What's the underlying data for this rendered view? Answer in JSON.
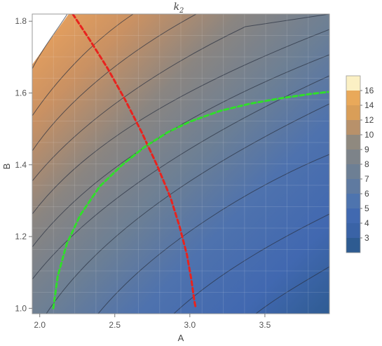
{
  "chart_data": {
    "type": "contour",
    "title": "k",
    "title_subscript": "2",
    "xlabel": "A",
    "ylabel": "B",
    "xlim": [
      1.95,
      3.93
    ],
    "ylim": [
      0.985,
      1.82
    ],
    "xticks": [
      2.0,
      2.5,
      3.0,
      3.5
    ],
    "xtick_labels": [
      "2.0",
      "2.5",
      "3.0",
      "3.5"
    ],
    "yticks": [
      1.0,
      1.2,
      1.4,
      1.6,
      1.8
    ],
    "ytick_labels": [
      "1.0",
      "1.2",
      "1.4",
      "1.6",
      "1.8"
    ],
    "grid": true,
    "legend": {
      "placement": "right",
      "levels": [
        "3",
        "4",
        "5",
        "6",
        "7",
        "8",
        "9",
        "10",
        "12",
        "14",
        "16"
      ],
      "colors": [
        "#2e5b91",
        "#3a63a6",
        "#4169b0",
        "#4e74ae",
        "#5f7aa0",
        "#6d7f94",
        "#7d8389",
        "#8f897f",
        "#b8916a",
        "#d99e58",
        "#e9a95a",
        "#fbf0c4"
      ]
    },
    "series": [
      {
        "color": "#e8231e",
        "style": "dashed",
        "x": [
          2.22,
          2.33,
          2.45,
          2.57,
          2.68,
          2.78,
          2.87,
          2.93,
          2.98,
          3.01,
          3.03,
          3.04
        ],
        "y": [
          1.82,
          1.75,
          1.67,
          1.58,
          1.49,
          1.4,
          1.31,
          1.23,
          1.15,
          1.08,
          1.02,
          1.0
        ]
      },
      {
        "color": "#31dd2b",
        "style": "dashed",
        "x": [
          2.09,
          2.12,
          2.18,
          2.27,
          2.4,
          2.55,
          2.7,
          2.85,
          3.0,
          3.2,
          3.4,
          3.6,
          3.8,
          3.92
        ],
        "y": [
          1.0,
          1.09,
          1.18,
          1.26,
          1.34,
          1.4,
          1.45,
          1.49,
          1.52,
          1.55,
          1.57,
          1.585,
          1.597,
          1.603
        ]
      }
    ]
  }
}
